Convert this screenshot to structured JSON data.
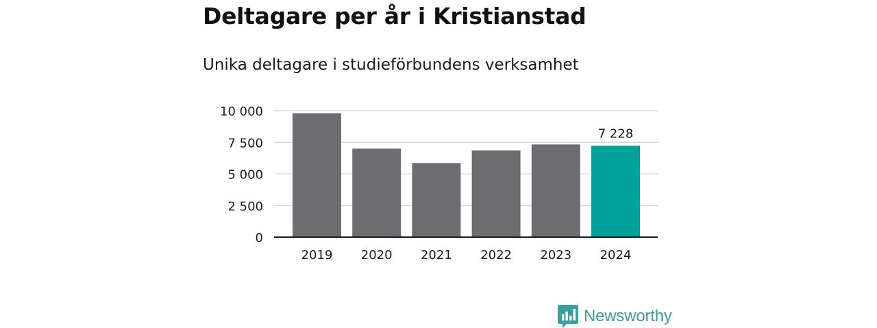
{
  "header": {
    "title": "Deltagare per år i Kristianstad",
    "subtitle": "Unika deltagare i studieförbundens verksamhet"
  },
  "logo": {
    "text": "Newsworthy",
    "icon": "bar-chart-speech-bubble-icon",
    "color": "#3d9e9a"
  },
  "colors": {
    "bar": "#6d6c71",
    "highlight": "#00a29a",
    "grid": "#d9d9d9",
    "axis": "#1a1a1a"
  },
  "chart_data": {
    "type": "bar",
    "categories": [
      "2019",
      "2020",
      "2021",
      "2022",
      "2023",
      "2024"
    ],
    "values": [
      9800,
      7000,
      5850,
      6850,
      7330,
      7228
    ],
    "highlight_index": 5,
    "data_labels": [
      {
        "index": 5,
        "text": "7 228"
      }
    ],
    "yticks": [
      {
        "value": 0,
        "label": "0"
      },
      {
        "value": 2500,
        "label": "2 500"
      },
      {
        "value": 5000,
        "label": "5 000"
      },
      {
        "value": 7500,
        "label": "7 500"
      },
      {
        "value": 10000,
        "label": "10 000"
      }
    ],
    "ylim": [
      0,
      10000
    ],
    "grid": true,
    "legend": "none"
  }
}
